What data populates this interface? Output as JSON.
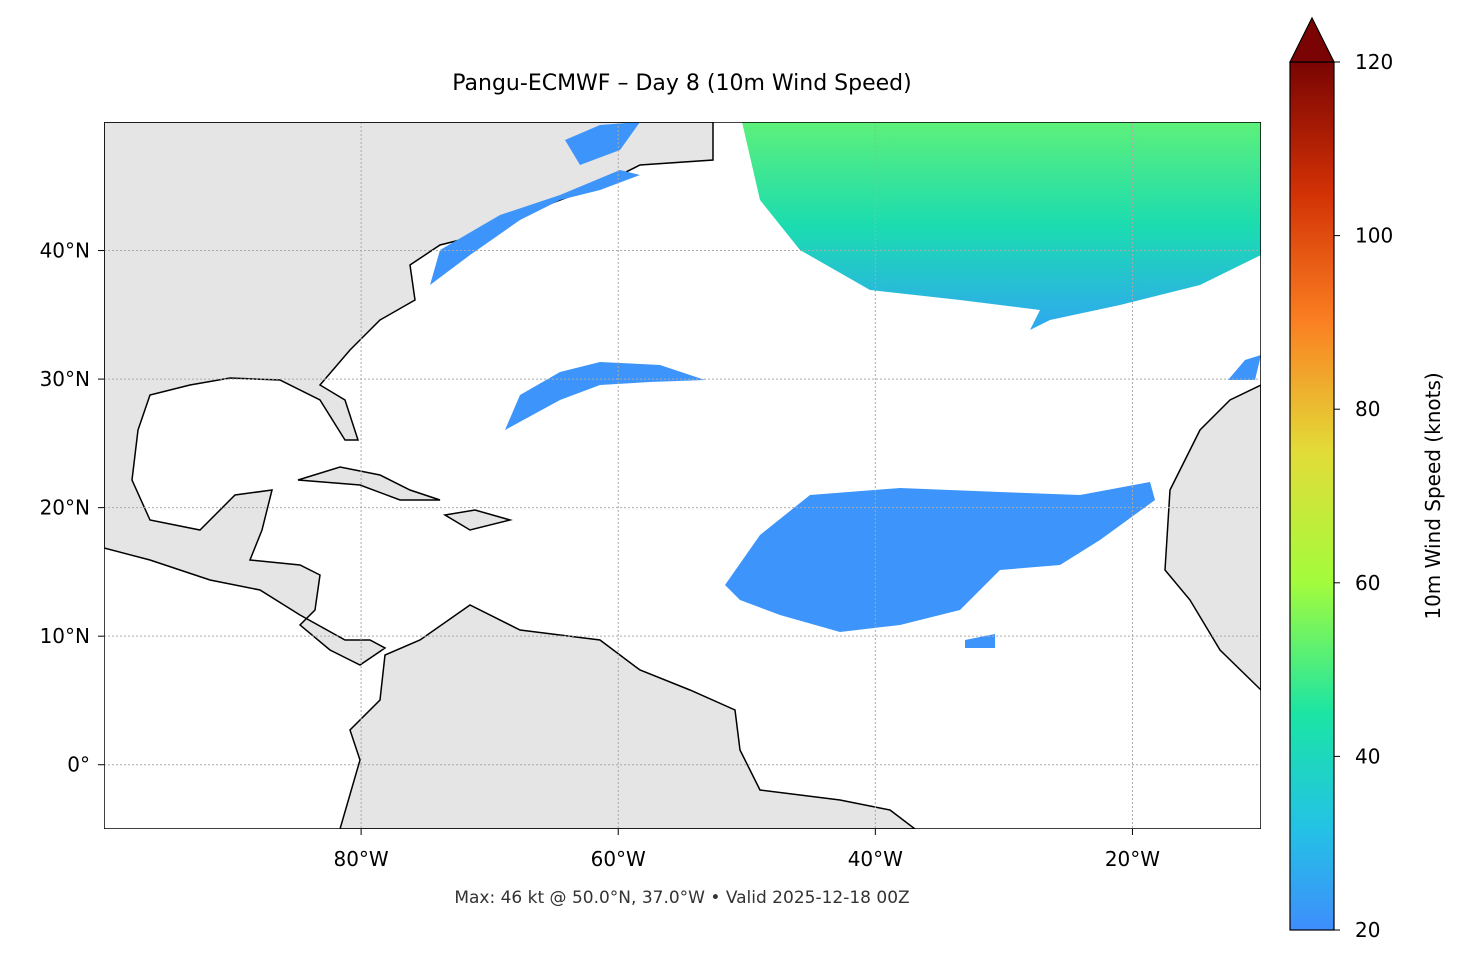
{
  "title": "Pangu-ECMWF – Day 8 (10m Wind Speed)",
  "footer": "Max: 46 kt @ 50.0°N, 37.0°W • Valid 2025-12-18 00Z",
  "map": {
    "lon_lim": [
      -100,
      -10
    ],
    "lat_lim": [
      -5,
      50
    ],
    "xticks": [
      {
        "value": -80,
        "label": "80°W"
      },
      {
        "value": -60,
        "label": "60°W"
      },
      {
        "value": -40,
        "label": "40°W"
      },
      {
        "value": -20,
        "label": "20°W"
      }
    ],
    "yticks": [
      {
        "value": 0,
        "label": "0°"
      },
      {
        "value": 10,
        "label": "10°N"
      },
      {
        "value": 20,
        "label": "20°N"
      },
      {
        "value": 30,
        "label": "30°N"
      },
      {
        "value": 40,
        "label": "40°N"
      }
    ],
    "grid": true
  },
  "colorbar": {
    "label": "10m Wind Speed (knots)",
    "lim": [
      20,
      120
    ],
    "ticks": [
      20,
      40,
      60,
      80,
      100,
      120
    ],
    "extend": "max"
  }
}
